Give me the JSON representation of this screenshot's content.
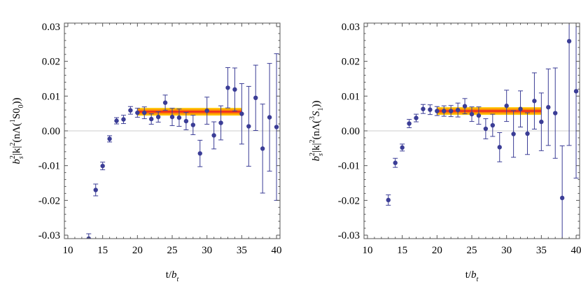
{
  "chart_data": [
    {
      "type": "scatter",
      "panel": "left",
      "ylabel": "b_s^2|k|^2(nΛ(^1S0_0))",
      "ylabel_parts": {
        "b": "b",
        "sub": "s",
        "sup": "2",
        "kabs": "|k|",
        "ksup": "2",
        "open": "(nΛ(",
        "state_sup": "1",
        "state": "S0",
        "state_sub": "0",
        "close": "))"
      },
      "xlabel": "t/b_t",
      "xlabel_parts": {
        "t": "t/",
        "b": "b",
        "sub": "t"
      },
      "xlim": [
        9.5,
        40.5
      ],
      "ylim": [
        -0.031,
        0.031
      ],
      "xticks": [
        10,
        15,
        20,
        25,
        30,
        35,
        40
      ],
      "xtick_labels": [
        "10",
        "15",
        "20",
        "25",
        "30",
        "35",
        "40"
      ],
      "yticks": [
        -0.03,
        -0.02,
        -0.01,
        0.0,
        0.01,
        0.02,
        0.03
      ],
      "ytick_labels": [
        "-0.03",
        "-0.02",
        "-0.01",
        "0.00",
        "0.01",
        "0.02",
        "0.03"
      ],
      "fit_band": {
        "x_start": 20,
        "x_end": 35,
        "center": 0.0055,
        "half_width": 0.0011
      },
      "points": [
        {
          "x": 13,
          "y": -0.031,
          "err": 0.0014
        },
        {
          "x": 14,
          "y": -0.017,
          "err": 0.0017
        },
        {
          "x": 15,
          "y": -0.0101,
          "err": 0.0011
        },
        {
          "x": 16,
          "y": -0.0023,
          "err": 0.0009
        },
        {
          "x": 17,
          "y": 0.0029,
          "err": 0.0009
        },
        {
          "x": 18,
          "y": 0.0033,
          "err": 0.0012
        },
        {
          "x": 19,
          "y": 0.0059,
          "err": 0.0011
        },
        {
          "x": 20,
          "y": 0.0052,
          "err": 0.0013
        },
        {
          "x": 21,
          "y": 0.0052,
          "err": 0.0017
        },
        {
          "x": 22,
          "y": 0.0034,
          "err": 0.0015
        },
        {
          "x": 23,
          "y": 0.004,
          "err": 0.0015
        },
        {
          "x": 24,
          "y": 0.0081,
          "err": 0.0022
        },
        {
          "x": 25,
          "y": 0.004,
          "err": 0.0025
        },
        {
          "x": 26,
          "y": 0.0038,
          "err": 0.0025
        },
        {
          "x": 27,
          "y": 0.0028,
          "err": 0.0025
        },
        {
          "x": 28,
          "y": 0.0017,
          "err": 0.0028
        },
        {
          "x": 29,
          "y": -0.0065,
          "err": 0.0038
        },
        {
          "x": 30,
          "y": 0.0058,
          "err": 0.0039
        },
        {
          "x": 31,
          "y": -0.0013,
          "err": 0.0039
        },
        {
          "x": 32,
          "y": 0.0023,
          "err": 0.0049
        },
        {
          "x": 33,
          "y": 0.0124,
          "err": 0.0058
        },
        {
          "x": 34,
          "y": 0.0119,
          "err": 0.0062
        },
        {
          "x": 35,
          "y": 0.0049,
          "err": 0.0087
        },
        {
          "x": 36,
          "y": 0.0013,
          "err": 0.0115
        },
        {
          "x": 37,
          "y": 0.0095,
          "err": 0.0094
        },
        {
          "x": 38,
          "y": -0.0051,
          "err": 0.0128
        },
        {
          "x": 39,
          "y": 0.0039,
          "err": 0.0155
        },
        {
          "x": 40,
          "y": 0.0011,
          "err": 0.0211
        }
      ]
    },
    {
      "type": "scatter",
      "panel": "right",
      "ylabel": "b_s^2|k|^2(nΛ(^3S_1))",
      "ylabel_parts": {
        "b": "b",
        "sub": "s",
        "sup": "2",
        "kabs": "|k|",
        "ksup": "2",
        "open": "(nΛ(",
        "state_sup": "3",
        "state": "S",
        "state_sub": "1",
        "close": "))"
      },
      "xlabel": "t/b_t",
      "xlabel_parts": {
        "t": "t/",
        "b": "b",
        "sub": "t"
      },
      "xlim": [
        9.5,
        40.5
      ],
      "ylim": [
        -0.031,
        0.031
      ],
      "xticks": [
        10,
        15,
        20,
        25,
        30,
        35,
        40
      ],
      "xtick_labels": [
        "10",
        "15",
        "20",
        "25",
        "30",
        "35",
        "40"
      ],
      "yticks": [
        -0.03,
        -0.02,
        -0.01,
        0.0,
        0.01,
        0.02,
        0.03
      ],
      "ytick_labels": [
        "-0.03",
        "-0.02",
        "-0.01",
        "0.00",
        "0.01",
        "0.02",
        "0.03"
      ],
      "fit_band": {
        "x_start": 20,
        "x_end": 35,
        "center": 0.0057,
        "half_width": 0.0011
      },
      "points": [
        {
          "x": 13,
          "y": -0.0199,
          "err": 0.0015
        },
        {
          "x": 14,
          "y": -0.0092,
          "err": 0.0013
        },
        {
          "x": 15,
          "y": -0.0048,
          "err": 0.001
        },
        {
          "x": 16,
          "y": 0.0021,
          "err": 0.0012
        },
        {
          "x": 17,
          "y": 0.0037,
          "err": 0.0011
        },
        {
          "x": 18,
          "y": 0.0063,
          "err": 0.0013
        },
        {
          "x": 19,
          "y": 0.0061,
          "err": 0.0014
        },
        {
          "x": 20,
          "y": 0.0057,
          "err": 0.0013
        },
        {
          "x": 21,
          "y": 0.0057,
          "err": 0.0015
        },
        {
          "x": 22,
          "y": 0.0057,
          "err": 0.0016
        },
        {
          "x": 23,
          "y": 0.006,
          "err": 0.002
        },
        {
          "x": 24,
          "y": 0.0071,
          "err": 0.0022
        },
        {
          "x": 25,
          "y": 0.0048,
          "err": 0.0021
        },
        {
          "x": 26,
          "y": 0.0044,
          "err": 0.0025
        },
        {
          "x": 27,
          "y": 0.0006,
          "err": 0.0029
        },
        {
          "x": 28,
          "y": 0.0016,
          "err": 0.0032
        },
        {
          "x": 29,
          "y": -0.0047,
          "err": 0.0042
        },
        {
          "x": 30,
          "y": 0.0072,
          "err": 0.0045
        },
        {
          "x": 31,
          "y": -0.0009,
          "err": 0.0067
        },
        {
          "x": 32,
          "y": 0.0063,
          "err": 0.0052
        },
        {
          "x": 33,
          "y": -0.0008,
          "err": 0.006
        },
        {
          "x": 34,
          "y": 0.0086,
          "err": 0.0081
        },
        {
          "x": 35,
          "y": 0.0026,
          "err": 0.0083
        },
        {
          "x": 36,
          "y": 0.0068,
          "err": 0.011
        },
        {
          "x": 37,
          "y": 0.0051,
          "err": 0.013
        },
        {
          "x": 38,
          "y": -0.0193,
          "err": 0.015
        },
        {
          "x": 39,
          "y": 0.0258,
          "err": 0.03
        },
        {
          "x": 40,
          "y": 0.0114,
          "err": 0.025
        }
      ]
    }
  ],
  "colors": {
    "marker": "#3b3d96",
    "errorbar": "#3b3d96",
    "zero_line": "#cccccc",
    "frame": "#555555",
    "band_outer": "#ffd400",
    "band_mid": "#ff8c00",
    "band_center": "#e8132a"
  }
}
